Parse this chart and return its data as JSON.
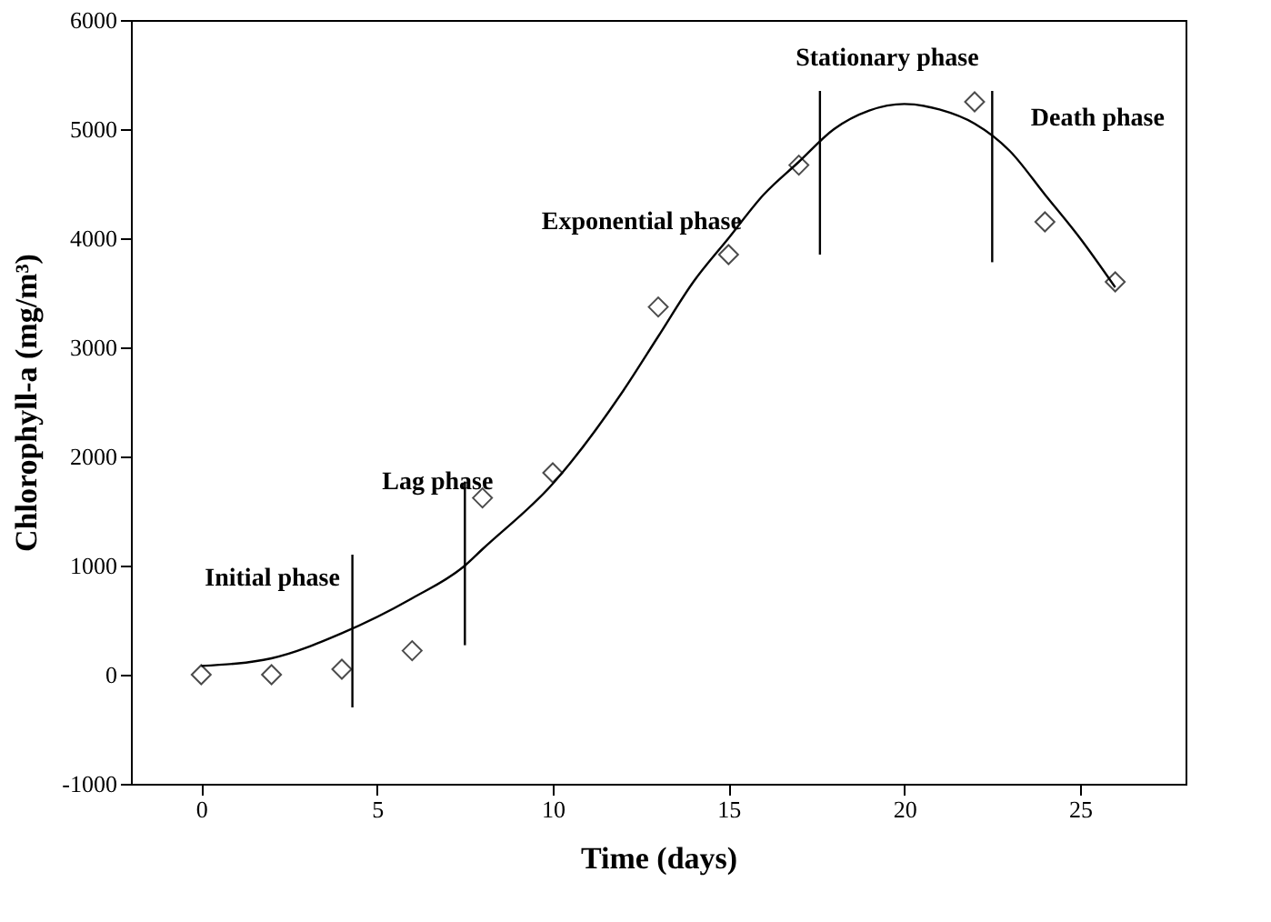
{
  "chart_data": {
    "type": "scatter",
    "xlabel": "Time (days)",
    "ylabel": "Chlorophyll-a (mg/m³)",
    "xlim": [
      -2,
      28
    ],
    "xticks": [
      0,
      5,
      10,
      15,
      20,
      25
    ],
    "ylim": [
      -1000,
      6000
    ],
    "yticks": [
      -1000,
      0,
      1000,
      2000,
      3000,
      4000,
      5000,
      6000
    ],
    "grid": false,
    "series": [
      {
        "marker": "diamond",
        "color": "#000000",
        "x": [
          0,
          2,
          4,
          6,
          8,
          10,
          13,
          15,
          17,
          22,
          24,
          26
        ],
        "values": [
          0,
          0,
          50,
          220,
          1620,
          1850,
          3370,
          3850,
          4670,
          5250,
          4150,
          3600
        ]
      },
      {
        "type": "line",
        "color": "#000000",
        "x": [
          0,
          2,
          4,
          6,
          7.5,
          8,
          10,
          12,
          13,
          14,
          15,
          16,
          17,
          18,
          19,
          20,
          21,
          22,
          23,
          24,
          25,
          26
        ],
        "values": [
          80,
          150,
          380,
          700,
          1000,
          1150,
          1750,
          2600,
          3100,
          3600,
          4000,
          4400,
          4700,
          5000,
          5170,
          5230,
          5180,
          5050,
          4800,
          4400,
          4000,
          3550
        ]
      },
      {
        "type": "line",
        "color": "#000000",
        "x": [
          4.3,
          4.3
        ],
        "values": [
          -300,
          1100
        ]
      },
      {
        "type": "line",
        "color": "#000000",
        "x": [
          7.5,
          7.5
        ],
        "values": [
          270,
          1770
        ]
      },
      {
        "type": "line",
        "color": "#000000",
        "x": [
          17.6,
          17.6
        ],
        "values": [
          3850,
          5350
        ]
      },
      {
        "type": "line",
        "color": "#000000",
        "x": [
          22.5,
          22.5
        ],
        "values": [
          3780,
          5350
        ]
      }
    ],
    "annotations": [
      "Initial phase",
      "Lag phase",
      "Exponential phase",
      "Stationary phase",
      "Death phase"
    ]
  }
}
